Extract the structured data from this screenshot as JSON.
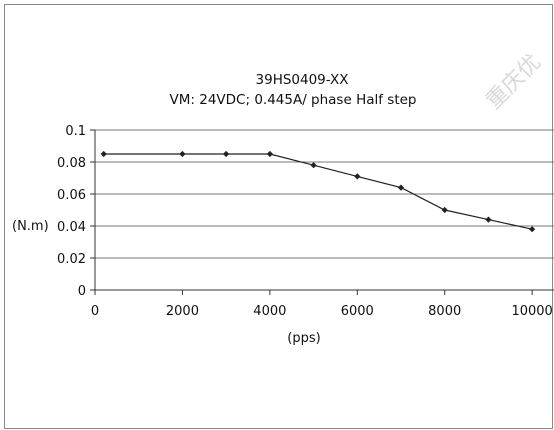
{
  "chart_data": {
    "type": "line",
    "title": "39HS0409-XX",
    "subtitle": "VM: 24VDC; 0.445A/ phase  Half step",
    "xlabel": "(pps)",
    "ylabel": "(N.m)",
    "watermark": "重庆优",
    "xlim": [
      0,
      10500
    ],
    "ylim": [
      0,
      0.1
    ],
    "xticks": [
      "0",
      "2000",
      "4000",
      "6000",
      "8000",
      "10000"
    ],
    "xtick_values": [
      0,
      2000,
      4000,
      6000,
      8000,
      10000
    ],
    "yticks": [
      "0",
      "0.02",
      "0.04",
      "0.06",
      "0.08",
      "0.1"
    ],
    "ytick_values": [
      0,
      0.02,
      0.04,
      0.06,
      0.08,
      0.1
    ],
    "grid": "horizontal",
    "legend": "none",
    "series": [
      {
        "x": [
          200,
          2000,
          3000,
          4000,
          5000,
          6000,
          7000,
          8000,
          9000,
          10000
        ],
        "y": [
          0.085,
          0.085,
          0.085,
          0.085,
          0.078,
          0.071,
          0.064,
          0.05,
          0.044,
          0.038
        ],
        "color": "#222222"
      }
    ]
  }
}
